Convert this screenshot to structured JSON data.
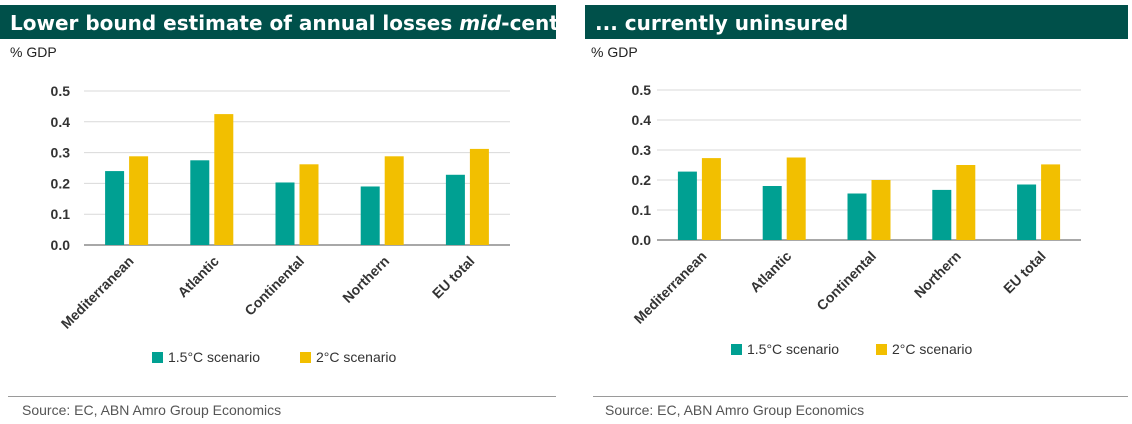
{
  "colors": {
    "title_bg": "#00504a",
    "series1": "#00a092",
    "series2": "#f2bf00",
    "grid": "#d9d9d9",
    "axis": "#8c8c8c"
  },
  "panels": [
    {
      "title": "Lower bound estimate of annual losses ",
      "title_italic": "mid",
      "title_suffix": "-century",
      "unit": "% GDP",
      "source": "Source: EC, ABN Amro Group Economics"
    },
    {
      "title": "... currently uninsured",
      "title_italic": "",
      "title_suffix": "",
      "unit": "% GDP",
      "source": "Source: EC, ABN Amro Group Economics"
    }
  ],
  "chart_data": [
    {
      "type": "bar",
      "title": "Lower bound estimate of annual losses mid-century",
      "ylabel": "% GDP",
      "categories": [
        "Mediterranean",
        "Atlantic",
        "Continental",
        "Northern",
        "EU total"
      ],
      "series": [
        {
          "name": "1.5°C scenario",
          "values": [
            0.24,
            0.275,
            0.203,
            0.19,
            0.228
          ]
        },
        {
          "name": "2°C scenario",
          "values": [
            0.288,
            0.425,
            0.262,
            0.288,
            0.312
          ]
        }
      ],
      "ylim": [
        0,
        0.5
      ],
      "yticks": [
        "0.0",
        "0.1",
        "0.2",
        "0.3",
        "0.4",
        "0.5"
      ],
      "grid": true,
      "legend": "bottom"
    },
    {
      "type": "bar",
      "title": "... currently uninsured",
      "ylabel": "% GDP",
      "categories": [
        "Mediterranean",
        "Atlantic",
        "Continental",
        "Northern",
        "EU total"
      ],
      "series": [
        {
          "name": "1.5°C scenario",
          "values": [
            0.228,
            0.18,
            0.155,
            0.167,
            0.185
          ]
        },
        {
          "name": "2°C scenario",
          "values": [
            0.273,
            0.275,
            0.2,
            0.25,
            0.252
          ]
        }
      ],
      "ylim": [
        0,
        0.5
      ],
      "yticks": [
        "0.0",
        "0.1",
        "0.2",
        "0.3",
        "0.4",
        "0.5"
      ],
      "grid": true,
      "legend": "bottom"
    }
  ]
}
